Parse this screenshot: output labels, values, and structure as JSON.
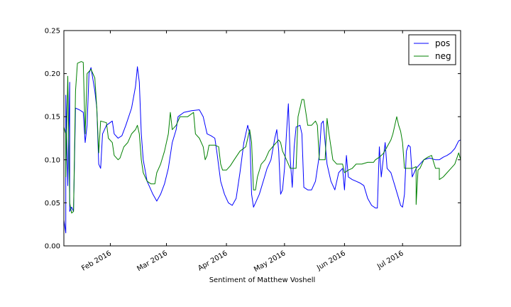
{
  "chart_data": {
    "type": "line",
    "title": "",
    "xlabel": "Sentiment of Matthew Voshell",
    "ylabel": "",
    "ylim": [
      0,
      0.25
    ],
    "xlim": [
      "2016-01-08",
      "2016-07-31"
    ],
    "grid": false,
    "legend_position": "top-right",
    "y_ticks": [
      "0.00",
      "0.05",
      "0.10",
      "0.15",
      "0.20",
      "0.25"
    ],
    "x_ticks": [
      {
        "date": "2016-02-01",
        "label": "Feb 2016"
      },
      {
        "date": "2016-03-01",
        "label": "Mar 2016"
      },
      {
        "date": "2016-04-01",
        "label": "Apr 2016"
      },
      {
        "date": "2016-05-01",
        "label": "May 2016"
      },
      {
        "date": "2016-06-01",
        "label": "Jun 2016"
      },
      {
        "date": "2016-07-01",
        "label": "Jul 2016"
      }
    ],
    "series": [
      {
        "name": "pos",
        "color": "#0000ff",
        "points": [
          [
            "2016-01-08",
            0.03
          ],
          [
            "2016-01-09",
            0.015
          ],
          [
            "2016-01-09",
            0.175
          ],
          [
            "2016-01-10",
            0.07
          ],
          [
            "2016-01-11",
            0.19
          ],
          [
            "2016-01-11",
            0.04
          ],
          [
            "2016-01-12",
            0.045
          ],
          [
            "2016-01-13",
            0.04
          ],
          [
            "2016-01-14",
            0.16
          ],
          [
            "2016-01-16",
            0.158
          ],
          [
            "2016-01-18",
            0.155
          ],
          [
            "2016-01-19",
            0.12
          ],
          [
            "2016-01-20",
            0.14
          ],
          [
            "2016-01-21",
            0.2
          ],
          [
            "2016-01-22",
            0.207
          ],
          [
            "2016-01-24",
            0.18
          ],
          [
            "2016-01-25",
            0.16
          ],
          [
            "2016-01-26",
            0.095
          ],
          [
            "2016-01-27",
            0.09
          ],
          [
            "2016-01-28",
            0.13
          ],
          [
            "2016-01-30",
            0.14
          ],
          [
            "2016-02-02",
            0.145
          ],
          [
            "2016-02-03",
            0.13
          ],
          [
            "2016-02-05",
            0.125
          ],
          [
            "2016-02-07",
            0.128
          ],
          [
            "2016-02-09",
            0.14
          ],
          [
            "2016-02-12",
            0.16
          ],
          [
            "2016-02-14",
            0.185
          ],
          [
            "2016-02-15",
            0.208
          ],
          [
            "2016-02-16",
            0.19
          ],
          [
            "2016-02-17",
            0.13
          ],
          [
            "2016-02-18",
            0.1
          ],
          [
            "2016-02-20",
            0.075
          ],
          [
            "2016-02-23",
            0.06
          ],
          [
            "2016-02-25",
            0.052
          ],
          [
            "2016-02-27",
            0.06
          ],
          [
            "2016-02-29",
            0.072
          ],
          [
            "2016-03-02",
            0.09
          ],
          [
            "2016-03-04",
            0.12
          ],
          [
            "2016-03-06",
            0.135
          ],
          [
            "2016-03-07",
            0.15
          ],
          [
            "2016-03-10",
            0.155
          ],
          [
            "2016-03-14",
            0.157
          ],
          [
            "2016-03-18",
            0.158
          ],
          [
            "2016-03-20",
            0.15
          ],
          [
            "2016-03-22",
            0.13
          ],
          [
            "2016-03-24",
            0.128
          ],
          [
            "2016-03-26",
            0.125
          ],
          [
            "2016-03-27",
            0.11
          ],
          [
            "2016-03-29",
            0.075
          ],
          [
            "2016-03-31",
            0.06
          ],
          [
            "2016-04-02",
            0.05
          ],
          [
            "2016-04-04",
            0.047
          ],
          [
            "2016-04-06",
            0.055
          ],
          [
            "2016-04-08",
            0.085
          ],
          [
            "2016-04-10",
            0.12
          ],
          [
            "2016-04-12",
            0.14
          ],
          [
            "2016-04-13",
            0.13
          ],
          [
            "2016-04-14",
            0.06
          ],
          [
            "2016-04-15",
            0.045
          ],
          [
            "2016-04-16",
            0.05
          ],
          [
            "2016-04-18",
            0.06
          ],
          [
            "2016-04-20",
            0.075
          ],
          [
            "2016-04-22",
            0.09
          ],
          [
            "2016-04-24",
            0.1
          ],
          [
            "2016-04-26",
            0.125
          ],
          [
            "2016-04-27",
            0.135
          ],
          [
            "2016-04-28",
            0.11
          ],
          [
            "2016-04-29",
            0.06
          ],
          [
            "2016-04-30",
            0.065
          ],
          [
            "2016-05-01",
            0.09
          ],
          [
            "2016-05-02",
            0.13
          ],
          [
            "2016-05-03",
            0.165
          ],
          [
            "2016-05-04",
            0.1
          ],
          [
            "2016-05-05",
            0.068
          ],
          [
            "2016-05-06",
            0.115
          ],
          [
            "2016-05-07",
            0.138
          ],
          [
            "2016-05-09",
            0.14
          ],
          [
            "2016-05-10",
            0.13
          ],
          [
            "2016-05-11",
            0.068
          ],
          [
            "2016-05-13",
            0.065
          ],
          [
            "2016-05-15",
            0.065
          ],
          [
            "2016-05-17",
            0.075
          ],
          [
            "2016-05-19",
            0.105
          ],
          [
            "2016-05-20",
            0.142
          ],
          [
            "2016-05-21",
            0.145
          ],
          [
            "2016-05-22",
            0.12
          ],
          [
            "2016-05-23",
            0.095
          ],
          [
            "2016-05-25",
            0.075
          ],
          [
            "2016-05-27",
            0.065
          ],
          [
            "2016-05-28",
            0.075
          ],
          [
            "2016-05-29",
            0.085
          ],
          [
            "2016-05-31",
            0.09
          ],
          [
            "2016-06-01",
            0.065
          ],
          [
            "2016-06-02",
            0.105
          ],
          [
            "2016-06-03",
            0.08
          ],
          [
            "2016-06-05",
            0.077
          ],
          [
            "2016-06-07",
            0.075
          ],
          [
            "2016-06-09",
            0.073
          ],
          [
            "2016-06-11",
            0.07
          ],
          [
            "2016-06-13",
            0.055
          ],
          [
            "2016-06-15",
            0.047
          ],
          [
            "2016-06-17",
            0.044
          ],
          [
            "2016-06-18",
            0.044
          ],
          [
            "2016-06-19",
            0.115
          ],
          [
            "2016-06-20",
            0.08
          ],
          [
            "2016-06-21",
            0.1
          ],
          [
            "2016-06-22",
            0.12
          ],
          [
            "2016-06-23",
            0.09
          ],
          [
            "2016-06-25",
            0.085
          ],
          [
            "2016-06-27",
            0.07
          ],
          [
            "2016-06-29",
            0.055
          ],
          [
            "2016-06-30",
            0.047
          ],
          [
            "2016-07-01",
            0.045
          ],
          [
            "2016-07-02",
            0.06
          ],
          [
            "2016-07-03",
            0.11
          ],
          [
            "2016-07-04",
            0.117
          ],
          [
            "2016-07-05",
            0.115
          ],
          [
            "2016-07-06",
            0.08
          ],
          [
            "2016-07-08",
            0.09
          ],
          [
            "2016-07-10",
            0.095
          ],
          [
            "2016-07-12",
            0.1
          ],
          [
            "2016-07-15",
            0.102
          ],
          [
            "2016-07-18",
            0.1
          ],
          [
            "2016-07-20",
            0.1
          ],
          [
            "2016-07-22",
            0.103
          ],
          [
            "2016-07-24",
            0.105
          ],
          [
            "2016-07-26",
            0.108
          ],
          [
            "2016-07-28",
            0.113
          ],
          [
            "2016-07-30",
            0.122
          ],
          [
            "2016-07-31",
            0.123
          ]
        ]
      },
      {
        "name": "neg",
        "color": "#008000",
        "points": [
          [
            "2016-01-08",
            0.138
          ],
          [
            "2016-01-09",
            0.13
          ],
          [
            "2016-01-09",
            0.08
          ],
          [
            "2016-01-10",
            0.197
          ],
          [
            "2016-01-11",
            0.05
          ],
          [
            "2016-01-12",
            0.038
          ],
          [
            "2016-01-13",
            0.04
          ],
          [
            "2016-01-14",
            0.18
          ],
          [
            "2016-01-15",
            0.212
          ],
          [
            "2016-01-17",
            0.214
          ],
          [
            "2016-01-18",
            0.213
          ],
          [
            "2016-01-19",
            0.13
          ],
          [
            "2016-01-20",
            0.2
          ],
          [
            "2016-01-22",
            0.205
          ],
          [
            "2016-01-24",
            0.195
          ],
          [
            "2016-01-25",
            0.16
          ],
          [
            "2016-01-26",
            0.108
          ],
          [
            "2016-01-27",
            0.145
          ],
          [
            "2016-01-30",
            0.143
          ],
          [
            "2016-01-31",
            0.125
          ],
          [
            "2016-02-02",
            0.12
          ],
          [
            "2016-02-03",
            0.105
          ],
          [
            "2016-02-05",
            0.1
          ],
          [
            "2016-02-06",
            0.102
          ],
          [
            "2016-02-08",
            0.115
          ],
          [
            "2016-02-10",
            0.12
          ],
          [
            "2016-02-12",
            0.13
          ],
          [
            "2016-02-14",
            0.135
          ],
          [
            "2016-02-15",
            0.14
          ],
          [
            "2016-02-16",
            0.13
          ],
          [
            "2016-02-17",
            0.1
          ],
          [
            "2016-02-18",
            0.085
          ],
          [
            "2016-02-20",
            0.075
          ],
          [
            "2016-02-22",
            0.072
          ],
          [
            "2016-02-24",
            0.072
          ],
          [
            "2016-02-25",
            0.085
          ],
          [
            "2016-02-27",
            0.095
          ],
          [
            "2016-02-29",
            0.11
          ],
          [
            "2016-03-02",
            0.13
          ],
          [
            "2016-03-03",
            0.155
          ],
          [
            "2016-03-04",
            0.135
          ],
          [
            "2016-03-06",
            0.14
          ],
          [
            "2016-03-08",
            0.15
          ],
          [
            "2016-03-12",
            0.15
          ],
          [
            "2016-03-15",
            0.155
          ],
          [
            "2016-03-16",
            0.13
          ],
          [
            "2016-03-18",
            0.125
          ],
          [
            "2016-03-20",
            0.115
          ],
          [
            "2016-03-21",
            0.1
          ],
          [
            "2016-03-22",
            0.105
          ],
          [
            "2016-03-23",
            0.117
          ],
          [
            "2016-03-26",
            0.117
          ],
          [
            "2016-03-28",
            0.115
          ],
          [
            "2016-03-29",
            0.095
          ],
          [
            "2016-03-30",
            0.088
          ],
          [
            "2016-04-01",
            0.088
          ],
          [
            "2016-04-03",
            0.093
          ],
          [
            "2016-04-05",
            0.1
          ],
          [
            "2016-04-08",
            0.11
          ],
          [
            "2016-04-11",
            0.115
          ],
          [
            "2016-04-13",
            0.135
          ],
          [
            "2016-04-14",
            0.12
          ],
          [
            "2016-04-15",
            0.065
          ],
          [
            "2016-04-16",
            0.065
          ],
          [
            "2016-04-17",
            0.08
          ],
          [
            "2016-04-19",
            0.095
          ],
          [
            "2016-04-21",
            0.1
          ],
          [
            "2016-04-23",
            0.11
          ],
          [
            "2016-04-26",
            0.118
          ],
          [
            "2016-04-28",
            0.123
          ],
          [
            "2016-04-29",
            0.12
          ],
          [
            "2016-04-30",
            0.11
          ],
          [
            "2016-05-01",
            0.105
          ],
          [
            "2016-05-02",
            0.1
          ],
          [
            "2016-05-04",
            0.09
          ],
          [
            "2016-05-05",
            0.09
          ],
          [
            "2016-05-07",
            0.09
          ],
          [
            "2016-05-08",
            0.15
          ],
          [
            "2016-05-09",
            0.16
          ],
          [
            "2016-05-10",
            0.17
          ],
          [
            "2016-05-11",
            0.17
          ],
          [
            "2016-05-12",
            0.155
          ],
          [
            "2016-05-13",
            0.14
          ],
          [
            "2016-05-15",
            0.14
          ],
          [
            "2016-05-17",
            0.145
          ],
          [
            "2016-05-18",
            0.14
          ],
          [
            "2016-05-19",
            0.1
          ],
          [
            "2016-05-20",
            0.1
          ],
          [
            "2016-05-22",
            0.1
          ],
          [
            "2016-05-23",
            0.148
          ],
          [
            "2016-05-24",
            0.13
          ],
          [
            "2016-05-26",
            0.1
          ],
          [
            "2016-05-28",
            0.095
          ],
          [
            "2016-05-31",
            0.095
          ],
          [
            "2016-06-01",
            0.085
          ],
          [
            "2016-06-03",
            0.088
          ],
          [
            "2016-06-05",
            0.09
          ],
          [
            "2016-06-07",
            0.095
          ],
          [
            "2016-06-10",
            0.095
          ],
          [
            "2016-06-13",
            0.097
          ],
          [
            "2016-06-16",
            0.097
          ],
          [
            "2016-06-17",
            0.1
          ],
          [
            "2016-06-19",
            0.103
          ],
          [
            "2016-06-21",
            0.107
          ],
          [
            "2016-06-23",
            0.115
          ],
          [
            "2016-06-25",
            0.123
          ],
          [
            "2016-06-26",
            0.13
          ],
          [
            "2016-06-27",
            0.14
          ],
          [
            "2016-06-28",
            0.15
          ],
          [
            "2016-06-29",
            0.14
          ],
          [
            "2016-06-30",
            0.133
          ],
          [
            "2016-07-01",
            0.12
          ],
          [
            "2016-07-02",
            0.09
          ],
          [
            "2016-07-04",
            0.09
          ],
          [
            "2016-07-06",
            0.09
          ],
          [
            "2016-07-08",
            0.092
          ],
          [
            "2016-07-08",
            0.048
          ],
          [
            "2016-07-09",
            0.088
          ],
          [
            "2016-07-10",
            0.09
          ],
          [
            "2016-07-12",
            0.1
          ],
          [
            "2016-07-14",
            0.103
          ],
          [
            "2016-07-16",
            0.105
          ],
          [
            "2016-07-18",
            0.09
          ],
          [
            "2016-07-20",
            0.09
          ],
          [
            "2016-07-20",
            0.077
          ],
          [
            "2016-07-22",
            0.08
          ],
          [
            "2016-07-24",
            0.085
          ],
          [
            "2016-07-26",
            0.09
          ],
          [
            "2016-07-28",
            0.095
          ],
          [
            "2016-07-30",
            0.108
          ],
          [
            "2016-07-31",
            0.1
          ]
        ]
      }
    ]
  }
}
